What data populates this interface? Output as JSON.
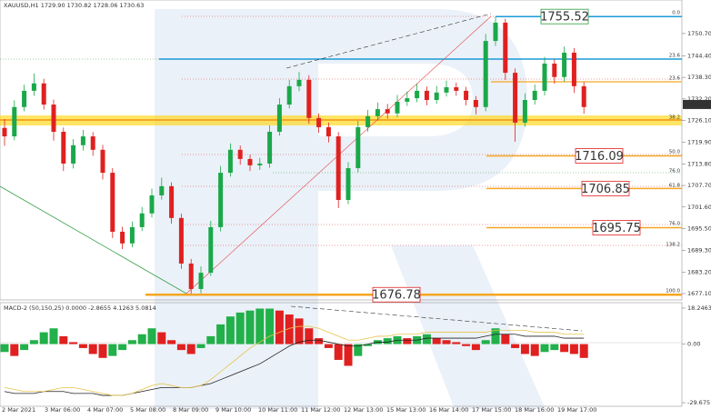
{
  "chart_data": [
    {
      "type": "candlestick",
      "title": "XAUUSD,H1  1729.90 1730.82 1728.06 1730.63",
      "up_color": "#1aa84a",
      "down_color": "#e02020",
      "candles": [
        [
          1724.0,
          1726.5,
          1718.9,
          1721.6
        ],
        [
          1721.6,
          1731.8,
          1720.5,
          1729.9
        ],
        [
          1729.9,
          1736.2,
          1728.7,
          1734.5
        ],
        [
          1734.5,
          1739.4,
          1733.1,
          1736.6
        ],
        [
          1736.6,
          1737.9,
          1729.2,
          1730.6
        ],
        [
          1730.6,
          1732.0,
          1720.4,
          1722.9
        ],
        [
          1722.9,
          1724.1,
          1711.8,
          1713.9
        ],
        [
          1713.9,
          1720.8,
          1712.5,
          1719.1
        ],
        [
          1719.1,
          1723.4,
          1717.6,
          1721.6
        ],
        [
          1721.6,
          1722.8,
          1716.1,
          1717.8
        ],
        [
          1717.8,
          1719.2,
          1709.4,
          1711.3
        ],
        [
          1711.3,
          1712.6,
          1692.8,
          1694.6
        ],
        [
          1694.6,
          1696.0,
          1689.7,
          1691.3
        ],
        [
          1691.3,
          1697.5,
          1690.2,
          1695.9
        ],
        [
          1695.9,
          1701.6,
          1694.8,
          1699.8
        ],
        [
          1699.8,
          1706.8,
          1698.6,
          1704.9
        ],
        [
          1704.9,
          1709.9,
          1703.7,
          1707.5
        ],
        [
          1707.5,
          1708.6,
          1696.9,
          1698.5
        ],
        [
          1698.5,
          1699.7,
          1684.1,
          1685.6
        ],
        [
          1685.6,
          1686.9,
          1676.9,
          1678.4
        ],
        [
          1678.4,
          1684.8,
          1677.2,
          1683.0
        ],
        [
          1683.0,
          1697.7,
          1682.1,
          1695.9
        ],
        [
          1695.9,
          1713.2,
          1694.7,
          1711.3
        ],
        [
          1711.3,
          1719.6,
          1710.2,
          1717.8
        ],
        [
          1717.8,
          1719.0,
          1713.6,
          1715.2
        ],
        [
          1715.2,
          1716.4,
          1711.8,
          1713.4
        ],
        [
          1713.4,
          1715.5,
          1712.1,
          1713.9
        ],
        [
          1713.9,
          1724.7,
          1712.7,
          1722.9
        ],
        [
          1722.9,
          1732.4,
          1721.8,
          1730.6
        ],
        [
          1730.6,
          1737.6,
          1729.5,
          1735.8
        ],
        [
          1735.8,
          1739.8,
          1734.4,
          1737.6
        ],
        [
          1737.6,
          1738.9,
          1725.2,
          1726.8
        ],
        [
          1726.8,
          1728.1,
          1722.6,
          1724.2
        ],
        [
          1724.2,
          1725.5,
          1719.9,
          1721.6
        ],
        [
          1721.6,
          1722.8,
          1701.3,
          1703.6
        ],
        [
          1703.6,
          1714.3,
          1702.4,
          1712.6
        ],
        [
          1712.6,
          1726.0,
          1711.4,
          1724.2
        ],
        [
          1724.2,
          1729.1,
          1722.9,
          1727.3
        ],
        [
          1727.3,
          1731.2,
          1726.1,
          1729.3
        ],
        [
          1729.3,
          1730.8,
          1726.6,
          1728.1
        ],
        [
          1728.1,
          1733.3,
          1727.0,
          1731.4
        ],
        [
          1731.4,
          1734.3,
          1730.2,
          1732.4
        ],
        [
          1732.4,
          1736.4,
          1731.3,
          1734.5
        ],
        [
          1734.5,
          1735.7,
          1730.4,
          1731.9
        ],
        [
          1731.9,
          1735.9,
          1730.8,
          1734.0
        ],
        [
          1734.0,
          1737.4,
          1732.9,
          1735.5
        ],
        [
          1735.5,
          1736.8,
          1733.1,
          1734.5
        ],
        [
          1734.5,
          1735.6,
          1730.4,
          1731.9
        ],
        [
          1731.9,
          1733.0,
          1727.8,
          1729.9
        ],
        [
          1729.9,
          1750.6,
          1728.7,
          1748.6
        ],
        [
          1748.6,
          1755.5,
          1747.2,
          1753.8
        ],
        [
          1753.8,
          1754.9,
          1737.6,
          1739.6
        ],
        [
          1739.6,
          1740.8,
          1720.1,
          1725.5
        ],
        [
          1725.5,
          1733.8,
          1724.3,
          1731.9
        ],
        [
          1731.9,
          1736.3,
          1730.6,
          1734.5
        ],
        [
          1734.5,
          1744.1,
          1733.2,
          1742.2
        ],
        [
          1742.2,
          1743.4,
          1736.5,
          1738.4
        ],
        [
          1738.4,
          1747.0,
          1737.1,
          1745.3
        ],
        [
          1745.3,
          1746.6,
          1733.9,
          1735.8
        ],
        [
          1735.8,
          1737.0,
          1728.0,
          1729.9
        ]
      ],
      "x_labels": [
        "2 Mar 2021",
        "3 Mar 06:00",
        "4 Mar 07:00",
        "5 Mar 08:00",
        "8 Mar 09:00",
        "9 Mar 10:00",
        "10 Mar 11:00",
        "11 Mar 12:00",
        "12 Mar 13:00",
        "15 Mar 13:00",
        "16 Mar 14:00",
        "17 Mar 15:00",
        "18 Mar 16:00",
        "19 Mar 17:00"
      ],
      "ylim": [
        1675.3,
        1760.2
      ],
      "yticks": [
        {
          "value": 1750.7,
          "label": "1750.70"
        },
        {
          "value": 1744.4,
          "label": "1744.40"
        },
        {
          "value": 1738.3,
          "label": "1738.30"
        },
        {
          "value": 1732.2,
          "label": "1732.20"
        },
        {
          "value": 1726.1,
          "label": "1726.10"
        },
        {
          "value": 1719.9,
          "label": "1719.90"
        },
        {
          "value": 1713.8,
          "label": "1713.80"
        },
        {
          "value": 1707.7,
          "label": "1707.70"
        },
        {
          "value": 1701.6,
          "label": "1701.60"
        },
        {
          "value": 1695.5,
          "label": "1695.50"
        },
        {
          "value": 1689.3,
          "label": "1689.30"
        },
        {
          "value": 1683.2,
          "label": "1683.20"
        },
        {
          "value": 1677.1,
          "label": "1677.10"
        }
      ],
      "current_price": 1730.63,
      "levels": [
        1755.52,
        1716.09,
        1706.85,
        1695.75,
        1676.78
      ],
      "fib_labels": [
        "0.0",
        "23.6",
        "23.6",
        "38.2",
        "50.0",
        "76.0",
        "61.8",
        "76.0",
        "138.2",
        "100.0"
      ]
    },
    {
      "type": "macd",
      "title": "MACD-2 (50,150,25) 0.0000 -2.8655 4.1263 5.0814",
      "histogram": [
        -4,
        -6,
        -3,
        2,
        6,
        8,
        4,
        1,
        -2,
        -5,
        -7,
        -6,
        -3,
        2,
        5,
        8,
        6,
        2,
        -3,
        -5,
        -2,
        4,
        10,
        14,
        16,
        17,
        18,
        18,
        17,
        15,
        13,
        8,
        3,
        -2,
        -8,
        -11,
        -6,
        -1,
        2,
        3,
        4,
        3,
        4,
        5,
        3,
        2,
        1,
        -1,
        -3,
        2,
        8,
        5,
        -2,
        -5,
        -6,
        -4,
        -3,
        -4,
        -5,
        -7
      ],
      "series": [
        {
          "color": "#222222",
          "values": [
            -24,
            -25,
            -25,
            -25,
            -24,
            -24,
            -24,
            -25,
            -25,
            -25,
            -26,
            -26,
            -26,
            -25,
            -24,
            -23,
            -22,
            -22,
            -22,
            -22,
            -21,
            -20,
            -18,
            -16,
            -14,
            -12,
            -10,
            -7,
            -4,
            -1,
            1,
            2,
            2,
            1,
            0,
            -1,
            -1,
            0,
            1,
            1,
            2,
            2,
            2,
            3,
            3,
            3,
            3,
            3,
            3,
            4,
            5,
            5,
            5,
            4,
            4,
            4,
            4,
            3,
            3,
            3
          ]
        },
        {
          "color": "#e6c24a",
          "values": [
            -22,
            -23,
            -24,
            -24,
            -24,
            -23,
            -22,
            -22,
            -23,
            -24,
            -25,
            -26,
            -26,
            -25,
            -23,
            -21,
            -20,
            -21,
            -22,
            -22,
            -21,
            -18,
            -14,
            -10,
            -6,
            -2,
            1,
            4,
            6,
            8,
            9,
            9,
            8,
            6,
            4,
            2,
            2,
            3,
            4,
            4,
            5,
            5,
            5,
            6,
            6,
            6,
            6,
            6,
            6,
            6,
            7,
            7,
            7,
            7,
            6,
            6,
            6,
            5,
            5,
            5
          ]
        }
      ],
      "ylim": [
        -31.5,
        21
      ],
      "yticks": [
        18.2463,
        {
          "value": 0,
          "label": "0.00"
        },
        -29.6751
      ]
    }
  ]
}
